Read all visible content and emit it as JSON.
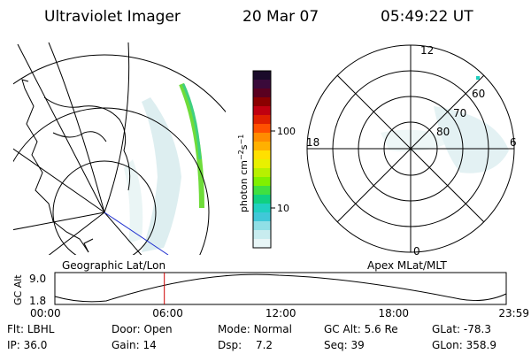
{
  "header": {
    "title": "Ultraviolet Imager",
    "date": "20 Mar 07",
    "time": "05:49:22 UT"
  },
  "colorbar": {
    "unit": "photon cm",
    "unit_sup1": "−2",
    "unit_mid": "s",
    "unit_sup2": "−1",
    "tick_labels": [
      "100",
      "10"
    ],
    "colors": [
      "#1a0a2a",
      "#3a0a3a",
      "#5a0020",
      "#8b0000",
      "#c00010",
      "#e02000",
      "#ff5000",
      "#ff8c00",
      "#ffb000",
      "#ffe000",
      "#e8f000",
      "#b8f000",
      "#80f000",
      "#40e040",
      "#10d080",
      "#20d0c0",
      "#40c8d8",
      "#90dfe6",
      "#c8ecef",
      "#e8f6f7"
    ]
  },
  "left_panel": {
    "label": "Geographic Lat/Lon"
  },
  "right_panel": {
    "label": "Apex MLat/MLT",
    "mlt_labels": [
      "12",
      "18",
      "6",
      "0"
    ],
    "lat_labels": [
      "60",
      "70",
      "80"
    ]
  },
  "timeline": {
    "ylabel": "GC Alt",
    "yticks": [
      "9.0",
      "1.8"
    ],
    "xticks": [
      "00:00",
      "06:00",
      "12:00",
      "18:00",
      "23:59"
    ],
    "marker_time": "05:49"
  },
  "footer": {
    "row1": [
      {
        "name": "Flt",
        "value": "LBHL"
      },
      {
        "name": "Door",
        "value": "Open"
      },
      {
        "name": "Mode",
        "value": "Normal"
      },
      {
        "name": "GC Alt",
        "value": "5.6 Re"
      },
      {
        "name": "GLat",
        "value": "-78.3"
      }
    ],
    "row2": [
      {
        "name": "IP",
        "value": "36.0"
      },
      {
        "name": "Gain",
        "value": "14"
      },
      {
        "name": "Dsp",
        "value": "7.2"
      },
      {
        "name": "Seq",
        "value": "39"
      },
      {
        "name": "GLon",
        "value": "358.9"
      }
    ]
  },
  "colors": {
    "marker": "#cc0000",
    "blue_line": "#2030d0"
  }
}
